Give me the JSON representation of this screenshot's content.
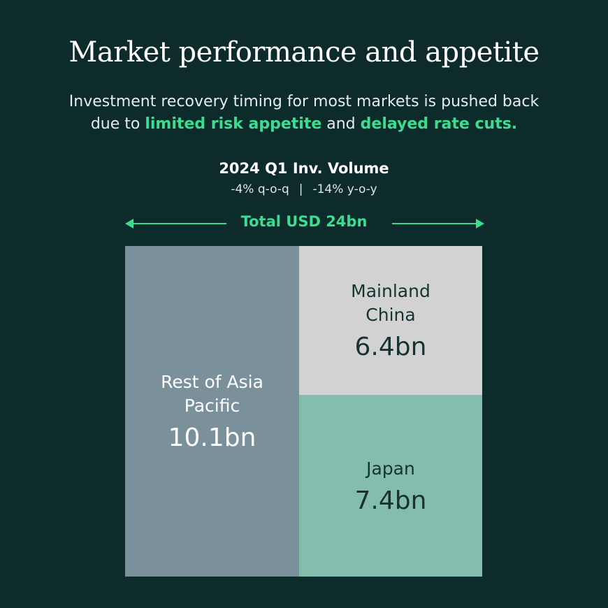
{
  "header": {
    "title": "Market performance and appetite",
    "subtitle_pre": "Investment recovery timing for most markets is pushed back due to ",
    "subtitle_hl1": "limited risk appetite",
    "subtitle_mid": " and ",
    "subtitle_hl2": "delayed rate cuts."
  },
  "volume": {
    "title": "2024 Q1 Inv. Volume",
    "qoq": "-4% q-o-q",
    "separator": "|",
    "yoy": "-14% y-o-y",
    "total": "Total USD 24bn"
  },
  "colors": {
    "background": "#0c2b2a",
    "accent": "#3ddc91"
  },
  "chart_data": {
    "type": "treemap",
    "unit": "USD bn",
    "total": 24,
    "items": [
      {
        "name": "Rest of Asia Pacific",
        "value": 10.1,
        "label": "10.1bn",
        "color": "#7a909b"
      },
      {
        "name": "Mainland China",
        "value": 6.4,
        "label": "6.4bn",
        "color": "#d2d2d2"
      },
      {
        "name": "Japan",
        "value": 7.4,
        "label": "7.4bn",
        "color": "#84bcad"
      }
    ]
  }
}
